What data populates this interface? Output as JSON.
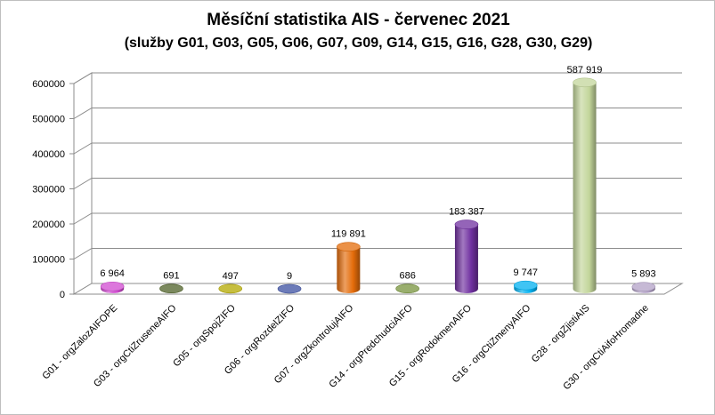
{
  "chart_data": {
    "type": "bar",
    "title": "Měsíční statistika AIS -  červenec 2021",
    "subtitle": "(služby G01, G03, G05, G06, G07, G09, G14, G15, G16, G28, G30, G29)",
    "categories": [
      "G01 - orgZalozAIFOPE",
      "G03 - orgCtiZruseneAIFO",
      "G05 - orgSpojZIFO",
      "G06 - orgRozdelZIFO",
      "G07 - orgZkontrolujAIFO",
      "G14 - orgPredchudciAIFO",
      "G15 - orgRodokmenAIFO",
      "G16 - orgCtiZmenyAIFO",
      "G28 - orgZjistiAIS",
      "G30 - orgCtiAifoHromadne"
    ],
    "values": [
      6964,
      691,
      497,
      9,
      119891,
      686,
      183387,
      9747,
      587919,
      5893
    ],
    "value_labels": [
      "6 964",
      "691",
      "497",
      "9",
      "119 891",
      "686",
      "183 387",
      "9 747",
      "587 919",
      "5 893"
    ],
    "colors": [
      "#d04ad0",
      "#4f6228",
      "#b3a800",
      "#3b4fa0",
      "#e46c0a",
      "#77933c",
      "#7030a0",
      "#00b0f0",
      "#c3d69b",
      "#b3a2c7"
    ],
    "yticks": [
      "0",
      "100000",
      "200000",
      "300000",
      "400000",
      "500000",
      "600000"
    ],
    "ylim": [
      0,
      600000
    ],
    "grid": true,
    "legend": "none"
  }
}
